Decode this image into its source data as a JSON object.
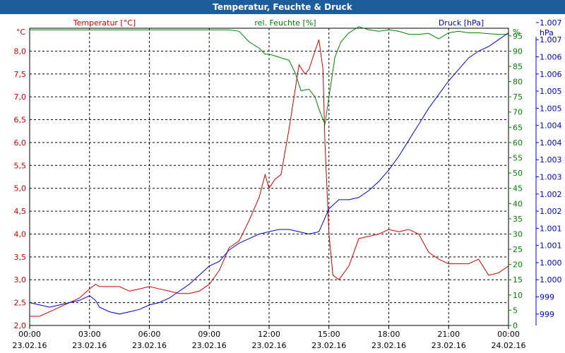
{
  "window": {
    "title": "Temperatur, Feuchte & Druck"
  },
  "colors": {
    "temperature": "#cc0000",
    "humidity": "#008000",
    "pressure": "#0000cc",
    "x_axis_text": "#000000",
    "grid": "#000000",
    "title_bar": "#1e5d9c"
  },
  "chart_data": {
    "type": "line",
    "title": "Temperatur, Feuchte & Druck",
    "grid": true,
    "x_ticks": [
      {
        "time": "00:00",
        "date": "23.02.16"
      },
      {
        "time": "03:00",
        "date": "23.02.16"
      },
      {
        "time": "06:00",
        "date": "23.02.16"
      },
      {
        "time": "09:00",
        "date": "23.02.16"
      },
      {
        "time": "12:00",
        "date": "23.02.16"
      },
      {
        "time": "15:00",
        "date": "23.02.16"
      },
      {
        "time": "18:00",
        "date": "23.02.16"
      },
      {
        "time": "21:00",
        "date": "23.02.16"
      },
      {
        "time": "00:00",
        "date": "24.02.16"
      }
    ],
    "axes": {
      "temperature": {
        "unit_label": "°C",
        "legend": "Temperatur [°C]",
        "range": [
          2.0,
          8.5
        ],
        "ticks": [
          "2,0",
          "2,5",
          "3,0",
          "3,5",
          "4,0",
          "4,5",
          "5,0",
          "5,5",
          "6,0",
          "6,5",
          "7,0",
          "7,5",
          "8,0"
        ]
      },
      "humidity": {
        "unit_label": "%",
        "legend": "rel. Feuchte [%]",
        "range": [
          0,
          97.5
        ],
        "ticks": [
          "0",
          "5",
          "10",
          "15",
          "20",
          "25",
          "30",
          "35",
          "40",
          "45",
          "50",
          "55",
          "60",
          "65",
          "70",
          "75",
          "80",
          "85",
          "90",
          "95"
        ]
      },
      "pressure": {
        "unit_label": "hPa",
        "legend": "Druck [hPa]",
        "range": [
          0,
          13
        ],
        "ticks": [
          "999",
          "999",
          "1.000",
          "1.000",
          "1.001",
          "1.001",
          "1.002",
          "1.002",
          "1.003",
          "1.003",
          "1.004",
          "1.004",
          "1.005",
          "1.005",
          "1.006",
          "1.006",
          "1.007",
          "1.007"
        ]
      }
    },
    "series": [
      {
        "name": "Temperatur [°C]",
        "axis": "temperature",
        "x": [
          0,
          0.5,
          1,
          1.5,
          2,
          2.5,
          3,
          3.3,
          3.5,
          4,
          4.5,
          5,
          5.5,
          6,
          6.5,
          7,
          7.5,
          8,
          8.5,
          9,
          9.5,
          10,
          10.5,
          11,
          11.5,
          11.8,
          12,
          12.3,
          12.6,
          13,
          13.5,
          13.8,
          14,
          14.3,
          14.5,
          14.7,
          14.8,
          15,
          15.2,
          15.5,
          16,
          16.5,
          17,
          17.5,
          18,
          18.5,
          19,
          19.5,
          20,
          20.5,
          21,
          21.5,
          22,
          22.5,
          23,
          23.5,
          24
        ],
        "y": [
          2.2,
          2.2,
          2.3,
          2.4,
          2.5,
          2.6,
          2.8,
          2.9,
          2.85,
          2.85,
          2.85,
          2.75,
          2.8,
          2.85,
          2.8,
          2.75,
          2.7,
          2.7,
          2.75,
          2.9,
          3.2,
          3.7,
          3.85,
          4.3,
          4.8,
          5.3,
          5.0,
          5.2,
          5.3,
          6.3,
          7.7,
          7.5,
          7.6,
          8.0,
          8.25,
          7.6,
          6.0,
          4.0,
          3.1,
          3.0,
          3.3,
          3.9,
          3.95,
          4.0,
          4.1,
          4.05,
          4.1,
          4.0,
          3.6,
          3.45,
          3.35,
          3.35,
          3.35,
          3.45,
          3.1,
          3.15,
          3.3
        ]
      },
      {
        "name": "rel. Feuchte [%]",
        "axis": "humidity",
        "x": [
          0,
          1,
          2,
          3,
          4,
          5,
          6,
          7,
          8,
          9,
          10,
          10.5,
          11,
          11.5,
          11.8,
          12,
          12.5,
          13,
          13.3,
          13.6,
          14,
          14.3,
          14.5,
          14.8,
          15,
          15.3,
          15.6,
          16,
          16.5,
          17,
          17.5,
          18,
          18.5,
          19,
          19.5,
          20,
          20.5,
          21,
          21.5,
          22,
          22.5,
          23,
          23.5,
          24
        ],
        "y": [
          97,
          97,
          97,
          97,
          97,
          97,
          97,
          97,
          97,
          97,
          97,
          96.5,
          93,
          91,
          89,
          89,
          88,
          87,
          83,
          77,
          77.5,
          75,
          71,
          66,
          75,
          88,
          93,
          96,
          98,
          97,
          96.5,
          97,
          96.5,
          95.5,
          95.5,
          95.8,
          94,
          96,
          96.5,
          96,
          96,
          95.7,
          95.5,
          95.5
        ]
      },
      {
        "name": "Druck [hPa]",
        "axis": "pressure",
        "x": [
          0,
          0.5,
          1,
          1.5,
          2,
          2.5,
          3,
          3.3,
          3.5,
          4,
          4.5,
          5,
          5.5,
          6,
          6.5,
          7,
          7.5,
          8,
          8.5,
          9,
          9.5,
          10,
          10.5,
          11,
          11.5,
          12,
          12.5,
          13,
          13.5,
          14,
          14.5,
          15,
          15.5,
          16,
          16.5,
          17,
          17.5,
          18,
          18.5,
          19,
          19.5,
          20,
          20.5,
          21,
          21.5,
          22,
          22.5,
          23,
          23.5,
          24
        ],
        "y": [
          1.0,
          0.9,
          0.8,
          0.9,
          1.0,
          1.1,
          1.3,
          1.1,
          0.8,
          0.6,
          0.5,
          0.6,
          0.7,
          0.9,
          1.0,
          1.2,
          1.5,
          1.8,
          2.2,
          2.6,
          2.8,
          3.3,
          3.6,
          3.8,
          4.0,
          4.1,
          4.2,
          4.2,
          4.1,
          4.0,
          4.1,
          5.1,
          5.5,
          5.5,
          5.6,
          5.9,
          6.3,
          6.8,
          7.4,
          8.1,
          8.8,
          9.5,
          10.1,
          10.7,
          11.2,
          11.7,
          12.0,
          12.2,
          12.5,
          12.8
        ]
      }
    ]
  }
}
